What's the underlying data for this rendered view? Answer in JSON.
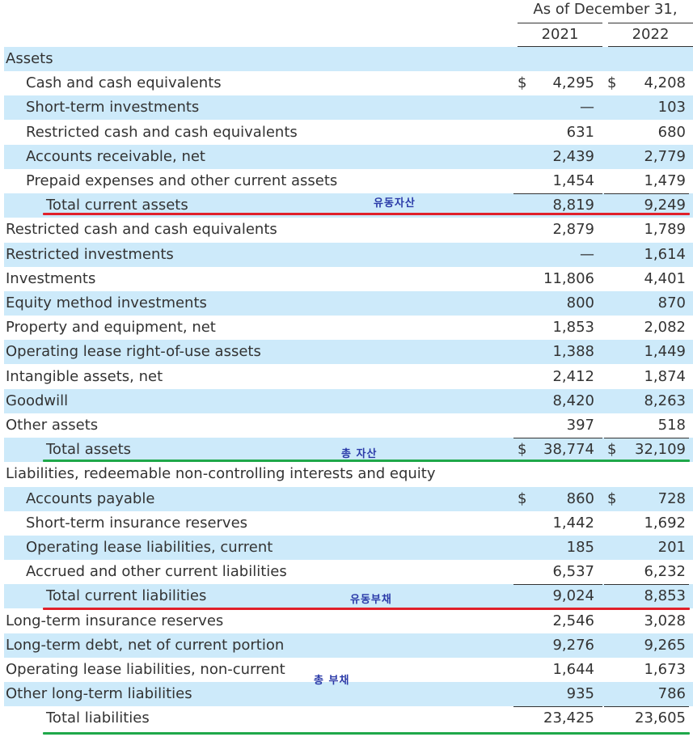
{
  "header": {
    "title": "As of December 31,",
    "year_1": "2021",
    "year_2": "2022"
  },
  "currency_symbol": "$",
  "rows": [
    {
      "label": "Assets",
      "v1": "",
      "v2": "",
      "level": 0,
      "shade": true
    },
    {
      "label": "Cash and cash equivalents",
      "v1": "4,295",
      "v2": "4,208",
      "level": 1,
      "shade": false,
      "currency": true
    },
    {
      "label": "Short-term investments",
      "v1": "—",
      "v2": "103",
      "level": 1,
      "shade": true
    },
    {
      "label": "Restricted cash and cash equivalents",
      "v1": "631",
      "v2": "680",
      "level": 1,
      "shade": false
    },
    {
      "label": "Accounts receivable, net",
      "v1": "2,439",
      "v2": "2,779",
      "level": 1,
      "shade": true
    },
    {
      "label": "Prepaid expenses and other current assets",
      "v1": "1,454",
      "v2": "1,479",
      "level": 1,
      "shade": false
    },
    {
      "label": "Total current assets",
      "v1": "8,819",
      "v2": "9,249",
      "level": 2,
      "shade": true,
      "rule_above": true
    },
    {
      "label": "Restricted cash and cash equivalents",
      "v1": "2,879",
      "v2": "1,789",
      "level": 0,
      "shade": false
    },
    {
      "label": "Restricted investments",
      "v1": "—",
      "v2": "1,614",
      "level": 0,
      "shade": true
    },
    {
      "label": "Investments",
      "v1": "11,806",
      "v2": "4,401",
      "level": 0,
      "shade": false
    },
    {
      "label": "Equity method investments",
      "v1": "800",
      "v2": "870",
      "level": 0,
      "shade": true
    },
    {
      "label": "Property and equipment, net",
      "v1": "1,853",
      "v2": "2,082",
      "level": 0,
      "shade": false
    },
    {
      "label": "Operating lease right-of-use assets",
      "v1": "1,388",
      "v2": "1,449",
      "level": 0,
      "shade": true
    },
    {
      "label": "Intangible assets, net",
      "v1": "2,412",
      "v2": "1,874",
      "level": 0,
      "shade": false
    },
    {
      "label": "Goodwill",
      "v1": "8,420",
      "v2": "8,263",
      "level": 0,
      "shade": true
    },
    {
      "label": "Other assets",
      "v1": "397",
      "v2": "518",
      "level": 0,
      "shade": false
    },
    {
      "label": "Total assets",
      "v1": "38,774",
      "v2": "32,109",
      "level": 2,
      "shade": true,
      "currency": true,
      "rule_above": true
    },
    {
      "label": "Liabilities, redeemable non-controlling interests and equity",
      "v1": "",
      "v2": "",
      "level": 0,
      "shade": false
    },
    {
      "label": "Accounts payable",
      "v1": "860",
      "v2": "728",
      "level": 1,
      "shade": true,
      "currency": true
    },
    {
      "label": "Short-term insurance reserves",
      "v1": "1,442",
      "v2": "1,692",
      "level": 1,
      "shade": false
    },
    {
      "label": "Operating lease liabilities, current",
      "v1": "185",
      "v2": "201",
      "level": 1,
      "shade": true
    },
    {
      "label": "Accrued and other current liabilities",
      "v1": "6,537",
      "v2": "6,232",
      "level": 1,
      "shade": false
    },
    {
      "label": "Total current liabilities",
      "v1": "9,024",
      "v2": "8,853",
      "level": 2,
      "shade": true,
      "rule_above": true
    },
    {
      "label": "Long-term insurance reserves",
      "v1": "2,546",
      "v2": "3,028",
      "level": 0,
      "shade": false
    },
    {
      "label": "Long-term debt, net of current portion",
      "v1": "9,276",
      "v2": "9,265",
      "level": 0,
      "shade": true
    },
    {
      "label": "Operating lease liabilities, non-current",
      "v1": "1,644",
      "v2": "1,673",
      "level": 0,
      "shade": false
    },
    {
      "label": "Other long-term liabilities",
      "v1": "935",
      "v2": "786",
      "level": 0,
      "shade": true
    },
    {
      "label": "Total liabilities",
      "v1": "23,425",
      "v2": "23,605",
      "level": 2,
      "shade": false,
      "rule_above": true
    }
  ],
  "annotations": {
    "current_assets": "유동자산",
    "total_assets": "총 자산",
    "current_liabilities": "유동부채",
    "total_liabilities": "총 부채"
  },
  "colors": {
    "shade": "#cdeafa",
    "red_mark": "#e0202a",
    "green_mark": "#1fa84a",
    "note_text": "#2a3aa8"
  }
}
